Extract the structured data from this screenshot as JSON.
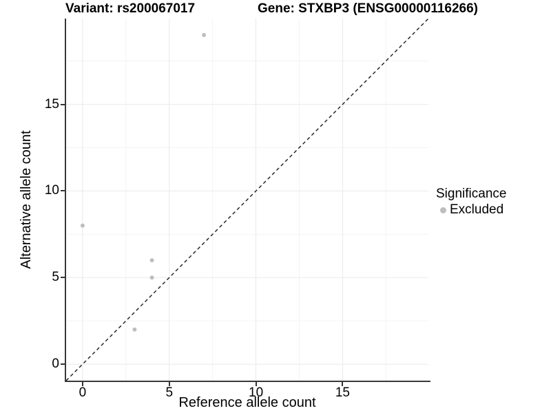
{
  "chart_data": {
    "type": "scatter",
    "title_variant": "Variant: rs200067017",
    "title_gene": "Gene: STXBP3 (ENSG00000116266)",
    "xlabel": "Reference allele count",
    "ylabel": "Alternative allele count",
    "xlim": [
      -0.95,
      19.95
    ],
    "ylim": [
      -0.95,
      19.95
    ],
    "x_major_ticks": [
      0,
      5,
      10,
      15
    ],
    "x_tick_labels": [
      "0",
      "5",
      "10",
      "15"
    ],
    "y_major_ticks": [
      0,
      5,
      10,
      15
    ],
    "y_tick_labels": [
      "0",
      "5",
      "10",
      "15"
    ],
    "x_minor_ticks": [
      2.5,
      7.5,
      12.5,
      17.5
    ],
    "y_minor_ticks": [
      2.5,
      7.5,
      12.5,
      17.5
    ],
    "grid": {
      "major_color": "#e9e9e9",
      "minor_color": "#f3f3f3"
    },
    "identity_line": {
      "slope": 1,
      "intercept": 0,
      "linetype": "dashed",
      "color": "#1a1a1a"
    },
    "series": [
      {
        "name": "Excluded",
        "color": "#bebebe",
        "points": [
          {
            "x": 0,
            "y": 8
          },
          {
            "x": 3,
            "y": 2
          },
          {
            "x": 4,
            "y": 5
          },
          {
            "x": 4,
            "y": 6
          },
          {
            "x": 7,
            "y": 19
          }
        ]
      }
    ],
    "legend": {
      "title": "Significance",
      "position": "right",
      "items": [
        {
          "label": "Excluded",
          "color": "#bebebe"
        }
      ]
    }
  }
}
